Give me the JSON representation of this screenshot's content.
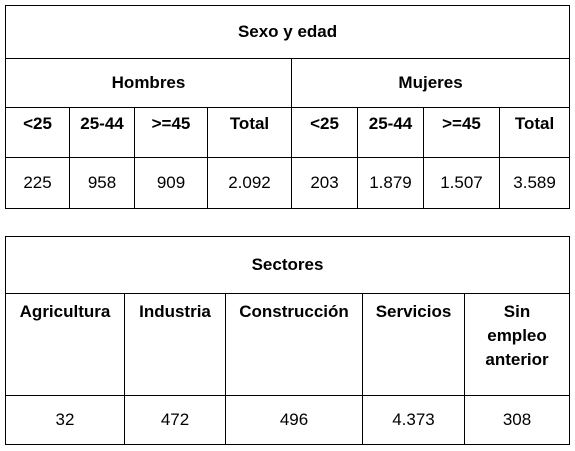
{
  "sexo_edad": {
    "title": "Sexo y edad",
    "hombres_label": "Hombres",
    "mujeres_label": "Mujeres",
    "age_headers": [
      "<25",
      "25-44",
      ">=45",
      "Total",
      "<25",
      "25-44",
      ">=45",
      "Total"
    ],
    "values": [
      "225",
      "958",
      "909",
      "2.092",
      "203",
      "1.879",
      "1.507",
      "3.589"
    ]
  },
  "sectores": {
    "title": "Sectores",
    "headers": {
      "agricultura": "Agricultura",
      "industria": "Industria",
      "construccion": "Construcción",
      "servicios": "Servicios",
      "sin_empleo_line1": "Sin",
      "sin_empleo_line2": "empleo",
      "sin_empleo_line3": "anterior"
    },
    "values": [
      "32",
      "472",
      "496",
      "4.373",
      "308"
    ]
  }
}
